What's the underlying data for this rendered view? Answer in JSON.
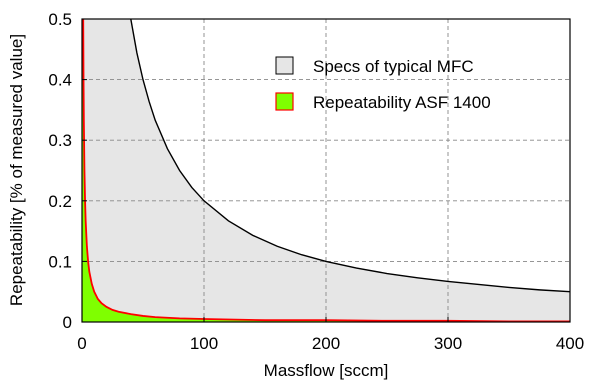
{
  "chart_data": {
    "type": "area",
    "xlabel": "Massflow [sccm]",
    "ylabel": "Repeatability [% of measured value]",
    "xlim": [
      0,
      400
    ],
    "ylim": [
      0,
      0.5
    ],
    "x_ticks": [
      0,
      100,
      200,
      300,
      400
    ],
    "y_ticks": [
      0,
      0.1,
      0.2,
      0.3,
      0.4,
      0.5
    ],
    "x_tick_labels": [
      "0",
      "100",
      "200",
      "300",
      "400"
    ],
    "y_tick_labels": [
      "0",
      "0.1",
      "0.2",
      "0.3",
      "0.4",
      "0.5"
    ],
    "grid": true,
    "legend_position": "top-right",
    "series": [
      {
        "name": "Specs of typical MFC",
        "fill_color": "#e6e6e6",
        "line_color": "#000000",
        "x": [
          40,
          45,
          50,
          55,
          60,
          70,
          80,
          90,
          100,
          120,
          140,
          160,
          180,
          200,
          225,
          250,
          275,
          300,
          325,
          350,
          375,
          400
        ],
        "y": [
          0.5,
          0.444,
          0.4,
          0.364,
          0.333,
          0.286,
          0.25,
          0.222,
          0.2,
          0.167,
          0.143,
          0.125,
          0.111,
          0.1,
          0.089,
          0.08,
          0.073,
          0.067,
          0.062,
          0.057,
          0.053,
          0.05
        ]
      },
      {
        "name": "Repeatability ASF 1400",
        "fill_color": "#7fff00",
        "line_color": "#ff0000",
        "x": [
          1,
          1.25,
          1.5,
          2,
          2.5,
          3,
          4,
          5,
          6,
          8,
          10,
          13,
          16,
          20,
          25,
          30,
          40,
          50,
          60,
          80,
          100,
          150,
          200,
          250,
          300,
          350,
          400
        ],
        "y": [
          0.5,
          0.4,
          0.333,
          0.25,
          0.2,
          0.167,
          0.125,
          0.1,
          0.083,
          0.063,
          0.05,
          0.038,
          0.031,
          0.025,
          0.02,
          0.017,
          0.013,
          0.01,
          0.008,
          0.006,
          0.005,
          0.003,
          0.003,
          0.002,
          0.002,
          0.001,
          0.001
        ]
      }
    ]
  }
}
